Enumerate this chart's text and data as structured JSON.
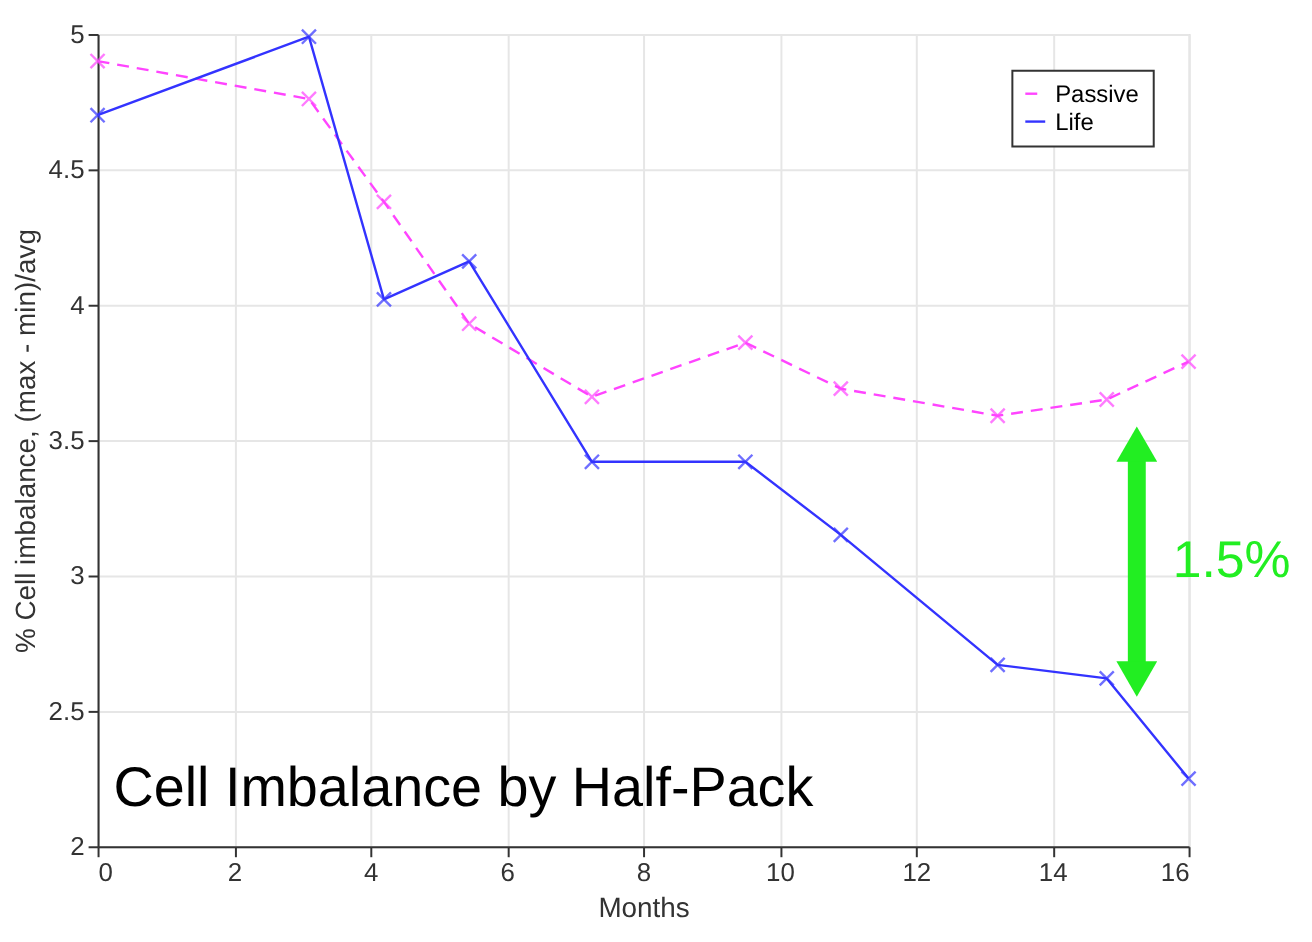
{
  "chart_data": {
    "type": "line",
    "title": "Cell Imbalance by Half-Pack",
    "xlabel": "Months",
    "ylabel": "% Cell imbalance, (max - min)/avg",
    "x": [
      0,
      3.1,
      4.2,
      5.45,
      7.25,
      9.5,
      10.9,
      13.2,
      14.8,
      16
    ],
    "series": [
      {
        "name": "Passive",
        "color": "#ff44ff",
        "line_style": "dashed",
        "values": [
          4.9,
          4.76,
          4.38,
          3.93,
          3.66,
          3.86,
          3.69,
          3.59,
          3.65,
          3.79
        ]
      },
      {
        "name": "Life",
        "color": "#3333ff",
        "line_style": "solid",
        "values": [
          4.7,
          4.99,
          4.02,
          4.16,
          3.42,
          3.42,
          3.15,
          2.67,
          2.62,
          2.25
        ]
      }
    ],
    "xlim": [
      0,
      16
    ],
    "xticks": [
      0,
      2,
      4,
      6,
      8,
      10,
      12,
      14,
      16
    ],
    "ylim": [
      2,
      5
    ],
    "yticks": [
      2,
      2.5,
      3,
      3.5,
      4,
      4.5,
      5
    ],
    "grid": true,
    "legend": "top right",
    "marker": "cross",
    "annotations": [
      "1.5%"
    ]
  }
}
